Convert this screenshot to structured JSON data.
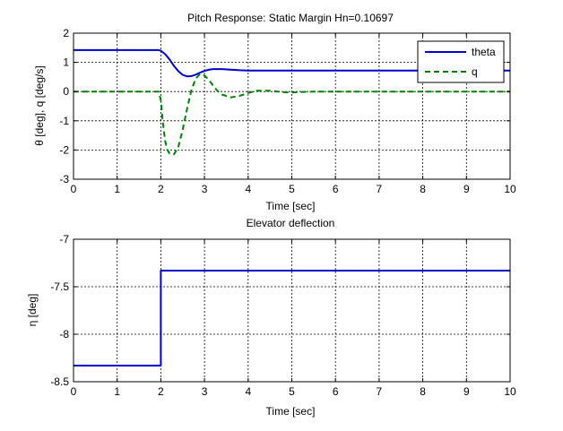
{
  "chart_data": [
    {
      "type": "line",
      "title": "Pitch Response: Static Margin Hn=0.10697",
      "xlabel": "Time [sec]",
      "ylabel": "θ [deg], q [deg/s]",
      "xlim": [
        0,
        10
      ],
      "ylim": [
        -3,
        2
      ],
      "xticks": [
        "0",
        "1",
        "2",
        "3",
        "4",
        "5",
        "6",
        "7",
        "8",
        "9",
        "10"
      ],
      "yticks": [
        "2",
        "1",
        "0",
        "-1",
        "-2",
        "-3"
      ],
      "grid": true,
      "legend_position": "top-right",
      "series": [
        {
          "name": "theta",
          "color": "#0000cc",
          "style": "solid",
          "x": [
            0,
            1.95,
            2.0,
            2.1,
            2.2,
            2.3,
            2.4,
            2.5,
            2.6,
            2.7,
            2.8,
            2.9,
            3.0,
            3.1,
            3.2,
            3.4,
            3.6,
            3.8,
            4.0,
            4.2,
            4.5,
            5.0,
            6.0,
            7.0,
            8.0,
            9.0,
            10.0
          ],
          "y": [
            1.42,
            1.42,
            1.4,
            1.28,
            1.1,
            0.88,
            0.7,
            0.57,
            0.52,
            0.53,
            0.58,
            0.65,
            0.71,
            0.75,
            0.77,
            0.77,
            0.75,
            0.73,
            0.72,
            0.72,
            0.72,
            0.72,
            0.72,
            0.72,
            0.72,
            0.72,
            0.72
          ]
        },
        {
          "name": "q",
          "color": "#008000",
          "style": "dashed",
          "x": [
            0,
            1.95,
            2.0,
            2.05,
            2.1,
            2.15,
            2.2,
            2.3,
            2.4,
            2.5,
            2.6,
            2.7,
            2.8,
            2.9,
            3.0,
            3.1,
            3.2,
            3.3,
            3.4,
            3.6,
            3.8,
            4.0,
            4.2,
            4.5,
            4.8,
            5.0,
            5.3,
            5.6,
            6.0,
            7.0,
            8.0,
            9.0,
            10.0
          ],
          "y": [
            0,
            0,
            -0.3,
            -1.1,
            -1.7,
            -2.0,
            -2.12,
            -2.15,
            -1.9,
            -1.3,
            -0.6,
            0.05,
            0.45,
            0.6,
            0.55,
            0.4,
            0.2,
            0.02,
            -0.1,
            -0.2,
            -0.15,
            -0.05,
            0.03,
            0.03,
            -0.02,
            -0.03,
            -0.01,
            0.0,
            0,
            0,
            0,
            0,
            0
          ]
        }
      ]
    },
    {
      "type": "line",
      "title": "Elevator deflection",
      "xlabel": "Time [sec]",
      "ylabel": "η [deg]",
      "xlim": [
        0,
        10
      ],
      "ylim": [
        -8.5,
        -7
      ],
      "xticks": [
        "0",
        "1",
        "2",
        "3",
        "4",
        "5",
        "6",
        "7",
        "8",
        "9",
        "10"
      ],
      "yticks": [
        "-7",
        "-7.5",
        "-8",
        "-8.5"
      ],
      "grid": true,
      "series": [
        {
          "color": "#0000cc",
          "style": "solid",
          "x": [
            0,
            2.0,
            2.0,
            10
          ],
          "y": [
            -8.33,
            -8.33,
            -7.33,
            -7.33
          ]
        }
      ]
    }
  ]
}
